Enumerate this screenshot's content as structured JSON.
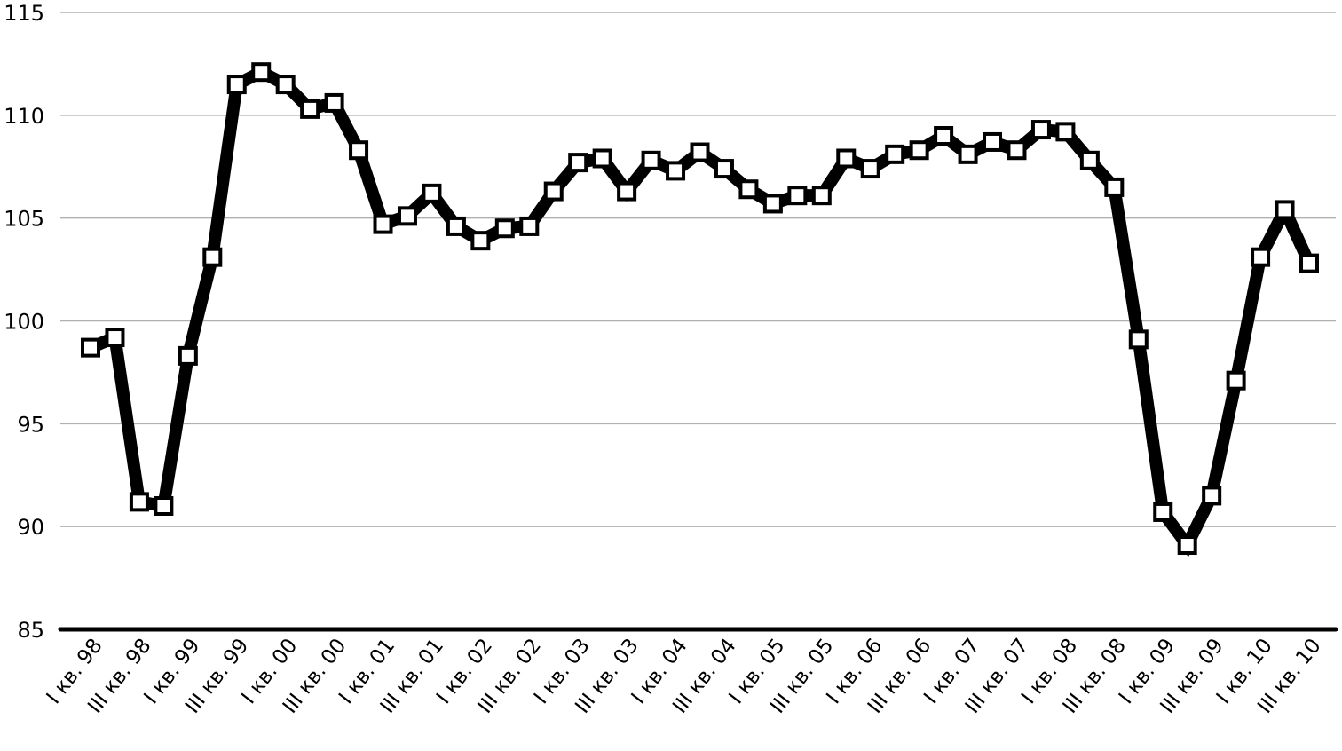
{
  "chart_data": {
    "type": "line",
    "title": "",
    "xlabel": "",
    "ylabel": "",
    "ylim": [
      85,
      115
    ],
    "yticks": [
      85,
      90,
      95,
      100,
      105,
      110,
      115
    ],
    "grid": "horizontal",
    "legend": "none",
    "colors": {
      "line": "#000000",
      "marker_fill": "#ffffff",
      "grid": "#b0b0b0",
      "axis": "#000000"
    },
    "marker": "square",
    "x_tick_labels": [
      "I кв. 98",
      "III кв. 98",
      "I кв. 99",
      "III кв. 99",
      "I кв. 00",
      "III кв. 00",
      "I кв. 01",
      "III кв. 01",
      "I кв. 02",
      "III кв. 02",
      "I кв. 03",
      "III кв. 03",
      "I кв. 04",
      "III кв. 04",
      "I кв. 05",
      "III кв. 05",
      "I кв. 06",
      "III кв. 06",
      "I кв. 07",
      "III кв. 07",
      "I кв. 08",
      "III кв. 08",
      "I кв. 09",
      "III кв. 09",
      "I кв. 10",
      "III кв. 10"
    ],
    "series": [
      {
        "values": [
          98.7,
          99.2,
          91.2,
          91.0,
          98.3,
          103.1,
          111.5,
          112.1,
          111.5,
          110.3,
          110.6,
          108.3,
          104.7,
          105.1,
          106.2,
          104.6,
          103.9,
          104.5,
          104.6,
          106.3,
          107.7,
          107.9,
          106.3,
          107.8,
          107.3,
          108.2,
          107.4,
          106.4,
          105.7,
          106.1,
          106.1,
          107.9,
          107.4,
          108.1,
          108.3,
          109.0,
          108.1,
          108.7,
          108.3,
          109.3,
          109.2,
          107.8,
          106.5,
          99.1,
          90.7,
          89.1,
          91.5,
          97.1,
          103.1,
          105.4,
          102.8
        ]
      }
    ]
  }
}
